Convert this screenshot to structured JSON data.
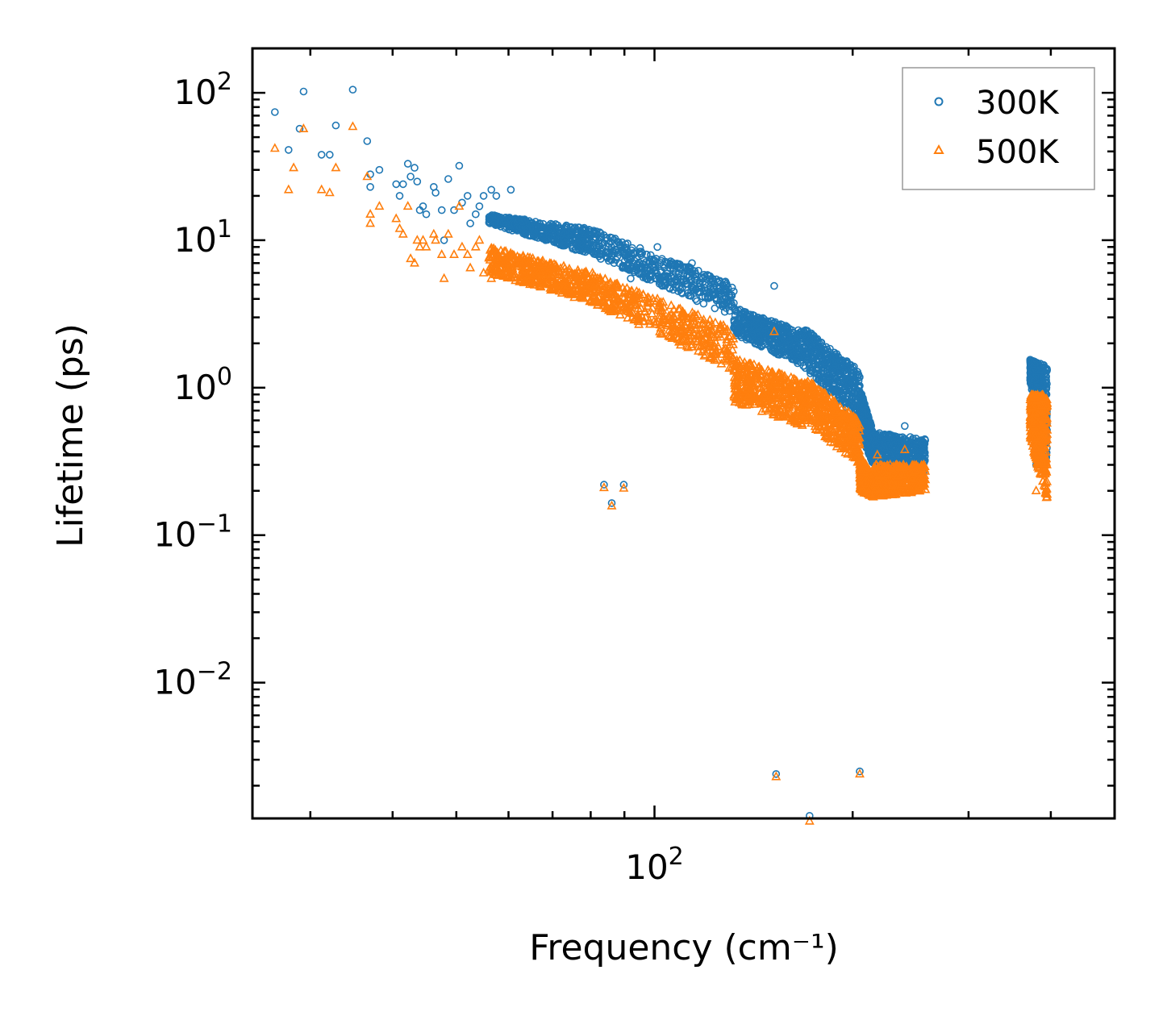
{
  "chart_data": {
    "type": "scatter",
    "title": "",
    "xlabel": "Frequency (cm⁻¹)",
    "ylabel": "Lifetime (ps)",
    "xscale": "log",
    "yscale": "log",
    "xlim": [
      24.5,
      500
    ],
    "ylim": [
      0.0012,
      200
    ],
    "xticks": [
      {
        "value": 100,
        "base": "10",
        "exp": "2"
      }
    ],
    "yticks": [
      {
        "value": 0.01,
        "base": "10",
        "exp": "−2"
      },
      {
        "value": 0.1,
        "base": "10",
        "exp": "−1"
      },
      {
        "value": 1,
        "base": "10",
        "exp": "0"
      },
      {
        "value": 10,
        "base": "10",
        "exp": "1"
      },
      {
        "value": 100,
        "base": "10",
        "exp": "2"
      }
    ],
    "legend": {
      "position": "top-right",
      "entries": [
        "300K",
        "500K"
      ]
    },
    "colors": {
      "300K": "#1f77b4",
      "500K": "#ff7f0e"
    },
    "series": [
      {
        "name": "300K",
        "marker": "circle",
        "points": [
          [
            26.5,
            74
          ],
          [
            27.8,
            41
          ],
          [
            28.9,
            57
          ],
          [
            29.3,
            102
          ],
          [
            31.2,
            38
          ],
          [
            32.1,
            38
          ],
          [
            32.8,
            60
          ],
          [
            34.8,
            105
          ],
          [
            36.6,
            47
          ],
          [
            37.0,
            28
          ],
          [
            37.0,
            23
          ],
          [
            38.2,
            30
          ],
          [
            40.5,
            24
          ],
          [
            41.0,
            20
          ],
          [
            41.5,
            24
          ],
          [
            42.2,
            33
          ],
          [
            42.6,
            27
          ],
          [
            43.2,
            31
          ],
          [
            43.6,
            25
          ],
          [
            44.0,
            16
          ],
          [
            44.5,
            17
          ],
          [
            45.0,
            15
          ],
          [
            46.2,
            23
          ],
          [
            46.5,
            21
          ],
          [
            47.5,
            16
          ],
          [
            47.9,
            10
          ],
          [
            48.6,
            26
          ],
          [
            49.6,
            16
          ],
          [
            50.5,
            32
          ],
          [
            51.0,
            18
          ],
          [
            52.0,
            20
          ],
          [
            52.5,
            13
          ],
          [
            53.5,
            15
          ],
          [
            54.2,
            17
          ],
          [
            55.0,
            20
          ],
          [
            56.5,
            22
          ],
          [
            57.5,
            20
          ],
          [
            60.5,
            22
          ],
          [
            64.5,
            13.5
          ],
          [
            73.6,
            10
          ],
          [
            80.5,
            9
          ],
          [
            83.8,
            0.22
          ],
          [
            86.1,
            0.165
          ],
          [
            89.8,
            0.22
          ],
          [
            92,
            5.5
          ],
          [
            95,
            7
          ],
          [
            101,
            9
          ],
          [
            114,
            7
          ],
          [
            152,
            4.9
          ],
          [
            153,
            0.0024
          ],
          [
            172,
            0.00125
          ],
          [
            205,
            0.0025
          ],
          [
            218,
            0.45
          ],
          [
            228,
            0.4
          ],
          [
            240,
            0.55
          ],
          [
            380,
            0.3
          ]
        ],
        "clusters": [
          {
            "x": [
              56,
              80
            ],
            "y_start": [
              13,
              15
            ],
            "y_end": [
              8,
              12
            ]
          },
          {
            "x": [
              80,
              132
            ],
            "y_start": [
              8,
              12
            ],
            "y_end": [
              3,
              5
            ]
          },
          {
            "x": [
              132,
              168
            ],
            "y_start": [
              2.3,
              3.5
            ],
            "y_end": [
              1.4,
              2.4
            ]
          },
          {
            "x": [
              168,
              205
            ],
            "y_start": [
              1.4,
              2.6
            ],
            "y_end": [
              0.6,
              1.3
            ]
          },
          {
            "x": [
              205,
              215
            ],
            "y_start": [
              0.5,
              1.0
            ],
            "y_end": [
              0.3,
              0.5
            ]
          },
          {
            "x": [
              215,
              258
            ],
            "y_start": [
              0.3,
              0.5
            ],
            "y_end": [
              0.25,
              0.45
            ]
          },
          {
            "x": [
              372,
              395
            ],
            "y_start": [
              1.1,
              1.55
            ],
            "y_end": [
              0.3,
              1.4
            ]
          }
        ]
      },
      {
        "name": "500K",
        "marker": "triangle",
        "points": [
          [
            26.5,
            42
          ],
          [
            27.8,
            22
          ],
          [
            28.3,
            31
          ],
          [
            29.3,
            57
          ],
          [
            31.2,
            22
          ],
          [
            32.1,
            21
          ],
          [
            32.8,
            31
          ],
          [
            34.8,
            59
          ],
          [
            36.6,
            27
          ],
          [
            37.0,
            15
          ],
          [
            37.0,
            13
          ],
          [
            38.2,
            17
          ],
          [
            40.5,
            14
          ],
          [
            41.0,
            12
          ],
          [
            41.5,
            11
          ],
          [
            42.2,
            17
          ],
          [
            42.6,
            7.5
          ],
          [
            43.2,
            7
          ],
          [
            43.6,
            10
          ],
          [
            44.0,
            9
          ],
          [
            44.5,
            10
          ],
          [
            45.0,
            9
          ],
          [
            46.2,
            11
          ],
          [
            46.5,
            10
          ],
          [
            47.5,
            8
          ],
          [
            47.9,
            5.5
          ],
          [
            48.6,
            11
          ],
          [
            49.6,
            8
          ],
          [
            50.5,
            17
          ],
          [
            51.0,
            9
          ],
          [
            52.0,
            8
          ],
          [
            52.5,
            6.5
          ],
          [
            53.5,
            9
          ],
          [
            54.2,
            10
          ],
          [
            55.0,
            6
          ],
          [
            56.5,
            5.5
          ],
          [
            57.5,
            7
          ],
          [
            60.5,
            7
          ],
          [
            64.5,
            5.5
          ],
          [
            73.6,
            5
          ],
          [
            80.5,
            6
          ],
          [
            83.8,
            0.21
          ],
          [
            86.1,
            0.158
          ],
          [
            89.8,
            0.208
          ],
          [
            92,
            3.2
          ],
          [
            95,
            4
          ],
          [
            101,
            4
          ],
          [
            114,
            3
          ],
          [
            152,
            2.4
          ],
          [
            153,
            0.0023
          ],
          [
            172,
            0.00115
          ],
          [
            205,
            0.0024
          ],
          [
            218,
            0.35
          ],
          [
            228,
            0.3
          ],
          [
            240,
            0.38
          ],
          [
            380,
            0.2
          ]
        ],
        "clusters": [
          {
            "x": [
              56,
              80
            ],
            "y_start": [
              6,
              9
            ],
            "y_end": [
              3.8,
              6
            ]
          },
          {
            "x": [
              80,
              132
            ],
            "y_start": [
              3.8,
              6
            ],
            "y_end": [
              1.3,
              2.5
            ]
          },
          {
            "x": [
              132,
              168
            ],
            "y_start": [
              0.8,
              1.6
            ],
            "y_end": [
              0.55,
              1.1
            ]
          },
          {
            "x": [
              168,
              205
            ],
            "y_start": [
              0.6,
              1.2
            ],
            "y_end": [
              0.3,
              0.6
            ]
          },
          {
            "x": [
              205,
              215
            ],
            "y_start": [
              0.2,
              0.35
            ],
            "y_end": [
              0.18,
              0.25
            ]
          },
          {
            "x": [
              215,
              258
            ],
            "y_start": [
              0.18,
              0.3
            ],
            "y_end": [
              0.2,
              0.3
            ]
          },
          {
            "x": [
              372,
              395
            ],
            "y_start": [
              0.45,
              0.9
            ],
            "y_end": [
              0.17,
              0.9
            ]
          }
        ]
      }
    ]
  }
}
